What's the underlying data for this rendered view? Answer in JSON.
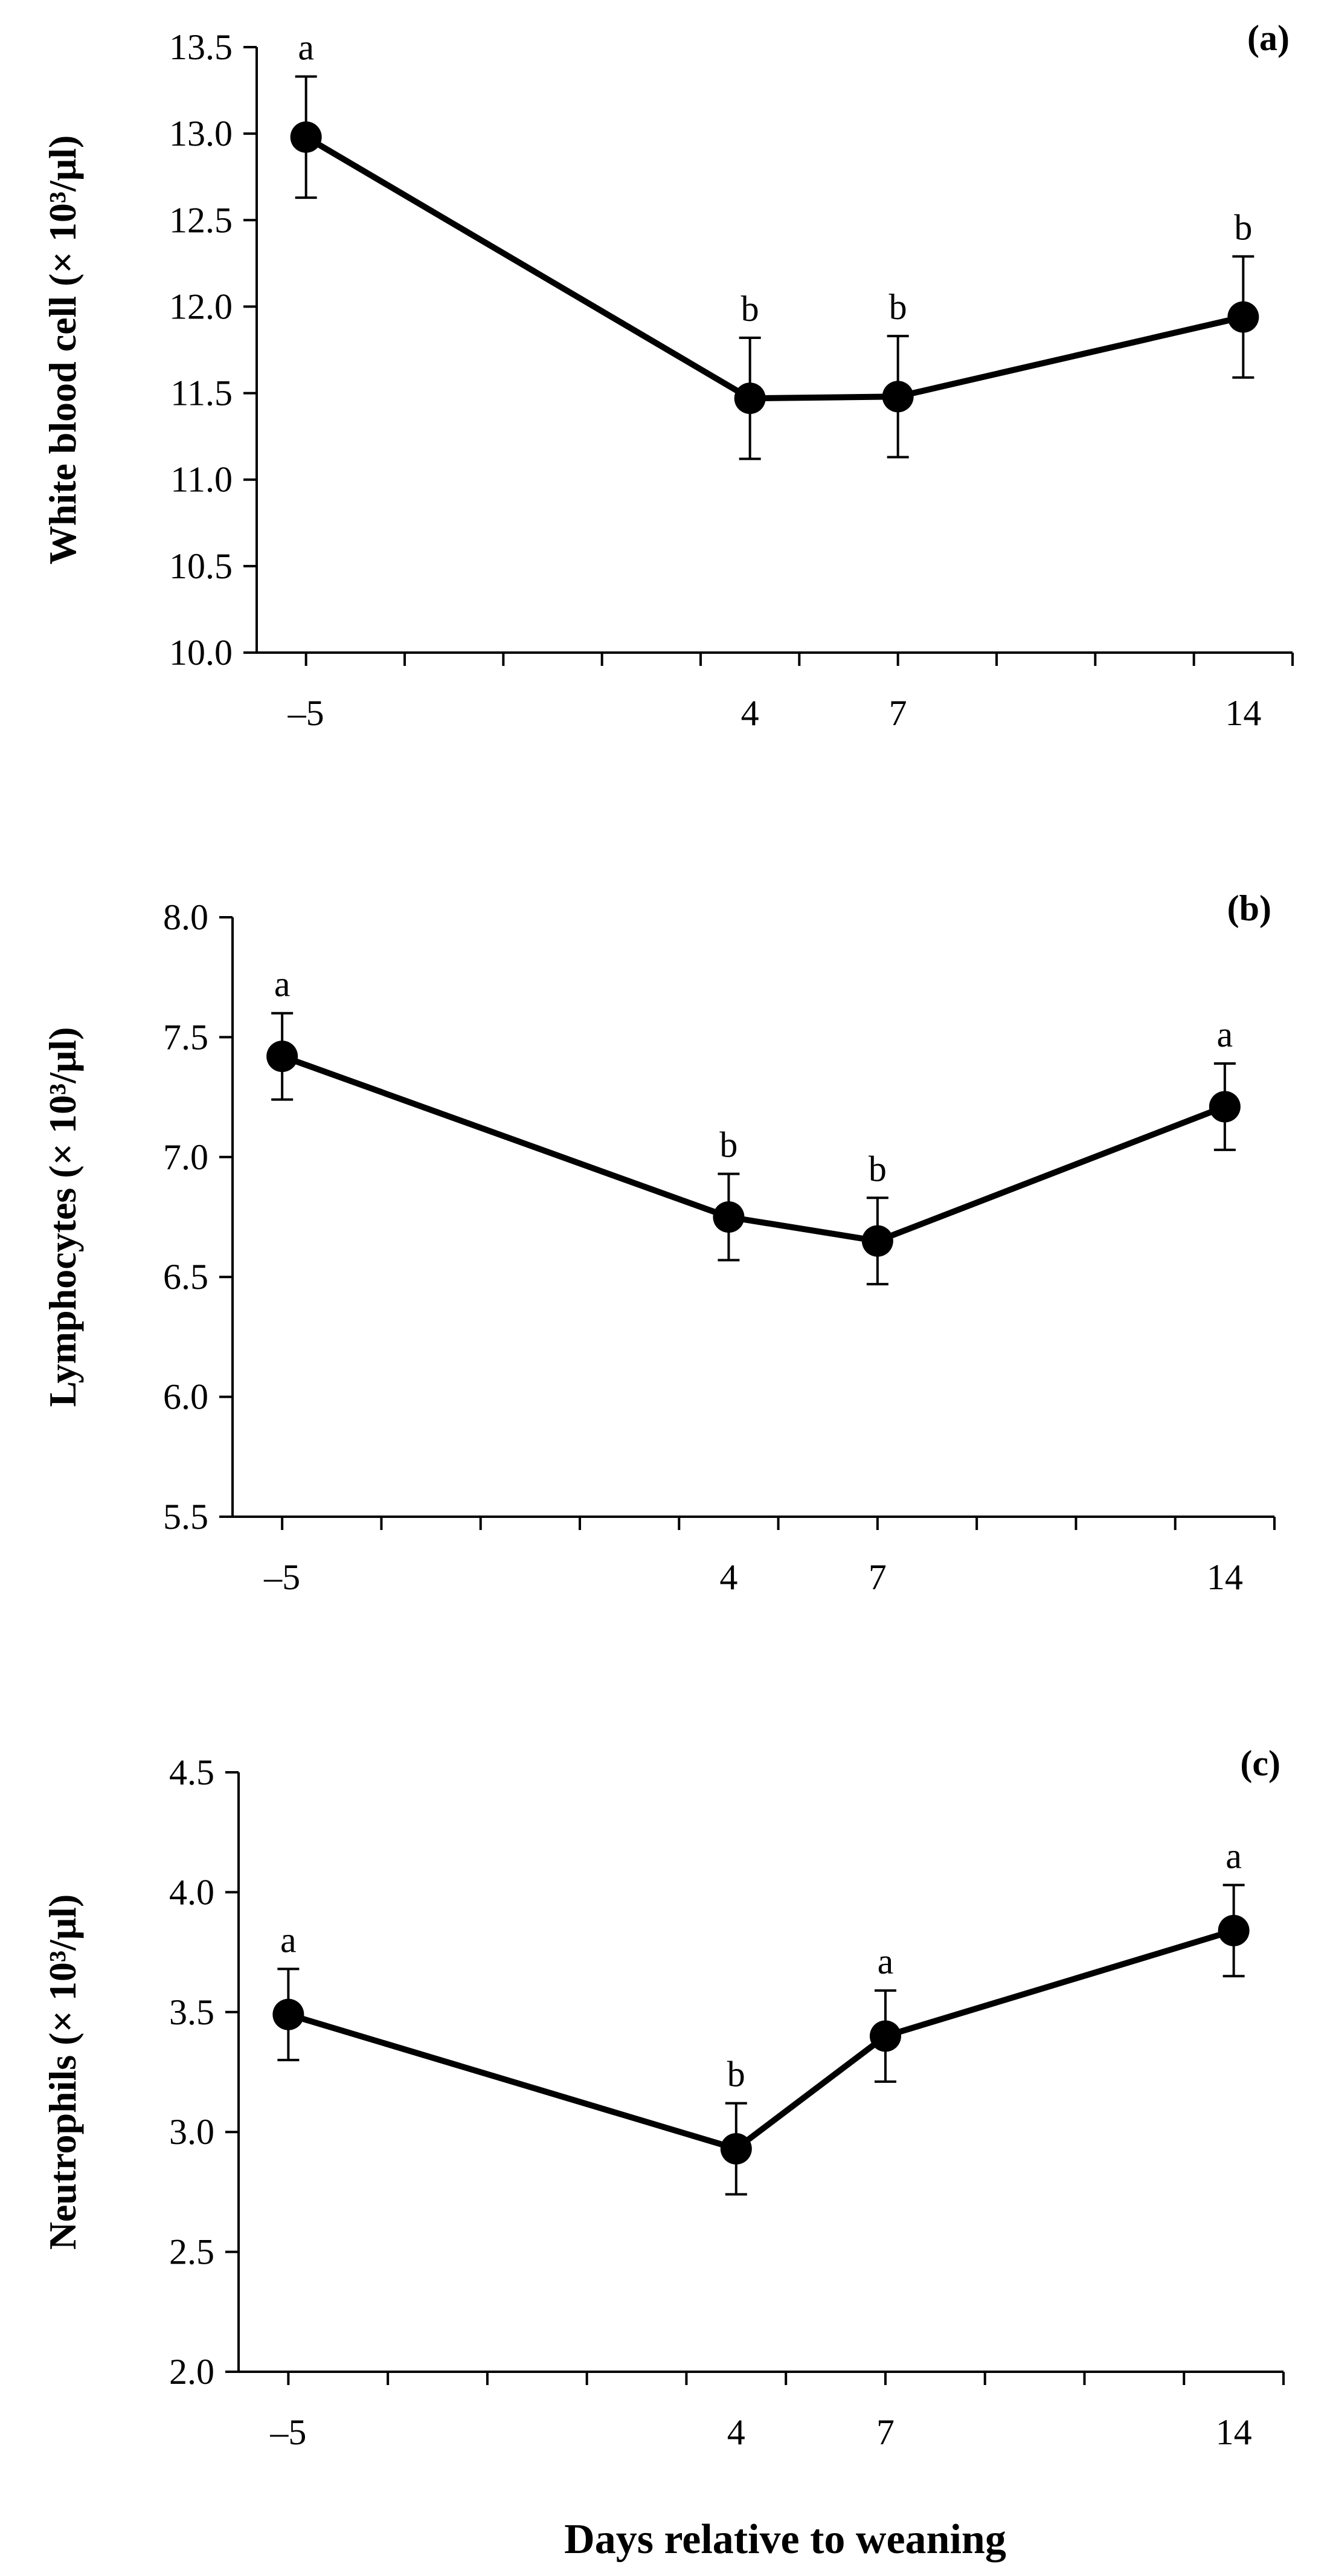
{
  "chart_data": [
    {
      "type": "line",
      "panel_label": "(a)",
      "ylabel": "White blood cell  (× 10³/μl)",
      "x": [
        -5,
        4,
        7,
        14
      ],
      "x_tick_labels": [
        "–5",
        "4",
        "7",
        "14"
      ],
      "y_tick_labels": [
        "10.0",
        "10.5",
        "11.0",
        "11.5",
        "12.0",
        "12.5",
        "13.0",
        "13.5"
      ],
      "ylim": [
        10.0,
        13.5
      ],
      "ystep": 0.5,
      "series": [
        {
          "name": "White blood cell",
          "values": [
            12.98,
            11.47,
            11.48,
            11.94
          ],
          "error": [
            0.35,
            0.35,
            0.35,
            0.35
          ],
          "letters": [
            "a",
            "b",
            "b",
            "b"
          ]
        }
      ]
    },
    {
      "type": "line",
      "panel_label": "(b)",
      "ylabel": "Lymphocytes (× 10³/μl)",
      "x": [
        -5,
        4,
        7,
        14
      ],
      "x_tick_labels": [
        "–5",
        "4",
        "7",
        "14"
      ],
      "y_tick_labels": [
        "5.5",
        "6.0",
        "6.5",
        "7.0",
        "7.5",
        "8.0"
      ],
      "ylim": [
        5.5,
        8.0
      ],
      "ystep": 0.5,
      "series": [
        {
          "name": "Lymphocytes",
          "values": [
            7.42,
            6.75,
            6.65,
            7.21
          ],
          "error": [
            0.18,
            0.18,
            0.18,
            0.18
          ],
          "letters": [
            "a",
            "b",
            "b",
            "a"
          ]
        }
      ]
    },
    {
      "type": "line",
      "panel_label": "(c)",
      "ylabel": "Neutrophils (× 10³/μl)",
      "x": [
        -5,
        4,
        7,
        14
      ],
      "x_tick_labels": [
        "–5",
        "4",
        "7",
        "14"
      ],
      "y_tick_labels": [
        "2.0",
        "2.5",
        "3.0",
        "3.5",
        "4.0",
        "4.5"
      ],
      "ylim": [
        2.0,
        4.5
      ],
      "ystep": 0.5,
      "series": [
        {
          "name": "Neutrophils",
          "values": [
            3.49,
            2.93,
            3.4,
            3.84
          ],
          "error": [
            0.19,
            0.19,
            0.19,
            0.19
          ],
          "letters": [
            "a",
            "b",
            "a",
            "a"
          ]
        }
      ]
    }
  ],
  "xlabel": "Days relative to weaning",
  "x_axis_range": [
    -6,
    15
  ],
  "style": {
    "line_color": "#000000",
    "marker_color": "#000000",
    "background": "#ffffff"
  }
}
